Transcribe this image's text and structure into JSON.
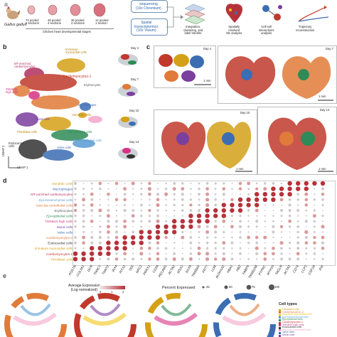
{
  "panels": {
    "a": "a",
    "b": "b",
    "c": "c",
    "d": "d",
    "e": "e"
  },
  "panel_a": {
    "species": "Gallus gallus",
    "samples": [
      {
        "text": "72 pooled\n5 sections"
      },
      {
        "text": "48 pooled\n4 sections"
      },
      {
        "text": "36 pooled\n2 sections"
      },
      {
        "text": "12 pooled\n1 section"
      }
    ],
    "stage_caption": "Chicken heart developmental stages",
    "sc_box": "sequencing\n(10x Chromium)",
    "spatial_box": "Spatial\ntranscriptomics\n(10x Visium)",
    "steps": [
      "Integration,\nclustering, and\nlabel transfer",
      "Spatially\nresolved\nGE analysis",
      "Cell-cell\ninteractions\nanalysis",
      "Trajectory\nreconstruction"
    ]
  },
  "panel_b": {
    "umap_x": "UMAP 1",
    "umap_y": "UMAP 2",
    "cluster_labels": [
      {
        "text": "Immature\nmyocardial cells",
        "color": "#d4a017"
      },
      {
        "text": "MT-enriched\ncardiomyocytes",
        "color": "#b03060"
      },
      {
        "text": "Cardiomyocytes-1",
        "color": "#c0392b"
      },
      {
        "text": "Erythrocytes",
        "color": "#555555"
      },
      {
        "text": "TMSB4X\nhigh cells",
        "color": "#d63384"
      },
      {
        "text": "Cardiomyocytes-2",
        "color": "#e07b39"
      },
      {
        "text": "Macrophages",
        "color": "#3b6db3"
      },
      {
        "text": "Dendritic cells",
        "color": "#d4a017"
      },
      {
        "text": "Mural cells",
        "color": "#7b3f9e"
      },
      {
        "text": "Epi-epithelial cells",
        "color": "#2e8b57"
      },
      {
        "text": "Fibroblast cells",
        "color": "#d4a017"
      },
      {
        "text": "Epi-mesenchymal cells",
        "color": "#5a9bd4"
      },
      {
        "text": "Endocardial\ncells",
        "color": "#333333"
      },
      {
        "text": "Valve cells",
        "color": "#3b6db3"
      }
    ],
    "day_labels": [
      "Day 4",
      "Day 7",
      "Day 10",
      "Day 14"
    ]
  },
  "panel_c": {
    "days": [
      "Day 4",
      "Day 7",
      "Day 10",
      "Day 14"
    ],
    "scale": "1 mm"
  },
  "chart_data": {
    "type": "dotplot",
    "rows": [
      "Dendritic cells",
      "Macrophages",
      "MT-enriched cardiomyocytes",
      "Epi-mesenchymal cells",
      "Vascular endothelial cells",
      "Erythrocytes",
      "Epi-epithelial cells",
      "TMSB4X high cells",
      "Mural cells",
      "Valve cells",
      "Cardiomyocytes-2",
      "Endocardial cells",
      "Immature myocardial cells",
      "Cardiomyocytes-1",
      "Fibroblast cells"
    ],
    "row_colors": [
      "#d4a017",
      "#3b6db3",
      "#b03060",
      "#5a9bd4",
      "#e07b39",
      "#555555",
      "#2e8b57",
      "#d63384",
      "#7b3f9e",
      "#3b6db3",
      "#e07b39",
      "#333333",
      "#d4a017",
      "#c0392b",
      "#d4a017"
    ],
    "genes": [
      "POSTN",
      "COL3A1",
      "DCN",
      "TNNC1",
      "TNNT2",
      "IRX4",
      "PITX2",
      "TEK",
      "NPC2",
      "PRRX1",
      "CD34",
      "PECAM1",
      "ACTA2",
      "MSX1",
      "SOX9",
      "TMSB4X",
      "KRT7",
      "LUM",
      "ALDH1A2",
      "HBA1",
      "HBZ",
      "FABP5",
      "TMSB15B",
      "PTPRC",
      "MYH15",
      "TAGLN",
      "ACTA2",
      "CD74",
      "LCP1",
      "CSF1R",
      "IFI6"
    ],
    "color_legend_title": "Average Expression\n(Log normalized)",
    "color_ticks": [
      "0",
      "1",
      "2"
    ],
    "size_legend_title": "Percent Expressed",
    "size_ticks": [
      "25",
      "50",
      "75",
      "100"
    ]
  },
  "panel_e": {
    "legend_title": "Cell types",
    "legend": [
      {
        "label": "Fibroblast cells",
        "color": "#d4a017"
      },
      {
        "label": "Cardiomyocytes -2",
        "color": "#e07b39"
      },
      {
        "label": "Immature myocardial cells",
        "color": "#f0c419"
      },
      {
        "label": "Epi-mesenchymal cells",
        "color": "#5a9bd4"
      },
      {
        "label": "Epi-epithelial cells",
        "color": "#2e8b57"
      },
      {
        "label": "Cardiomyocytes-1",
        "color": "#c0392b"
      },
      {
        "label": "TMSB4X high cells",
        "color": "#d63384"
      },
      {
        "label": "Endocardial cells",
        "color": "#333333"
      },
      {
        "label": "Vascular endothelial cells",
        "color": "#f3a6c8"
      },
      {
        "label": "Valve cells",
        "color": "#3b6db3"
      },
      {
        "label": "Mural cells",
        "color": "#7b3f9e"
      }
    ]
  }
}
